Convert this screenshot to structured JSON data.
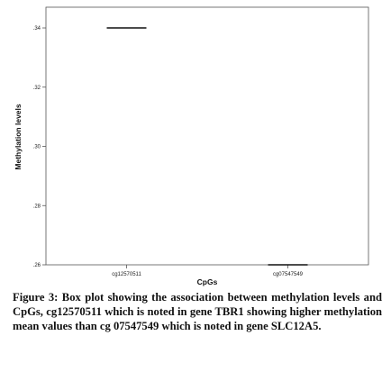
{
  "chart_data": {
    "type": "box",
    "categories": [
      "cg12570511",
      "cg07547549"
    ],
    "series": [
      {
        "values": [
          0.34,
          0.26
        ]
      }
    ],
    "xlabel": "CpGs",
    "ylabel": "Methylation levels",
    "ylim": [
      0.26,
      0.347
    ],
    "yticks": [
      ".26",
      ".28",
      ".30",
      ".32",
      ".34"
    ],
    "ytick_values": [
      0.26,
      0.28,
      0.3,
      0.32,
      0.34
    ],
    "grid": false,
    "colors": {
      "axis": "#555555",
      "median": "#111111"
    }
  },
  "caption": "Figure 3: Box plot showing the association between methylation levels and CpGs, cg12570511 which is noted in gene TBR1 showing higher methylation mean values than cg 07547549 which is noted in gene SLC12A5."
}
